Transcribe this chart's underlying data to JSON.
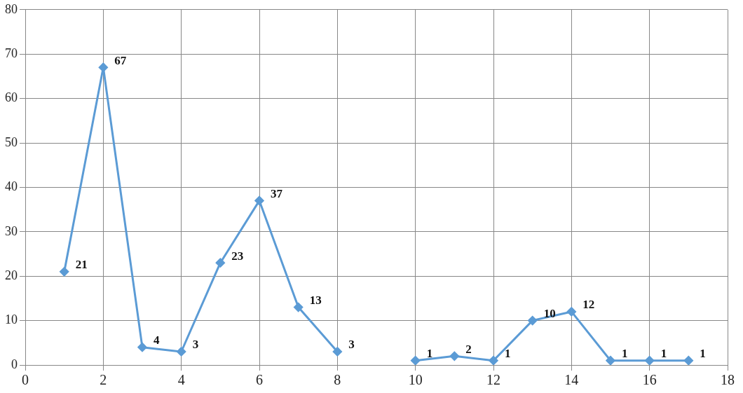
{
  "chart_data": {
    "type": "line",
    "x": [
      1,
      2,
      3,
      4,
      5,
      6,
      7,
      8,
      9,
      10,
      11,
      12,
      13,
      14,
      15,
      16,
      17
    ],
    "series": [
      {
        "color": "#5b9bd5",
        "values": [
          21,
          67,
          4,
          3,
          23,
          37,
          13,
          3,
          null,
          1,
          2,
          1,
          10,
          12,
          1,
          1,
          1
        ]
      }
    ],
    "xlim": [
      0,
      18
    ],
    "xticks": [
      0,
      2,
      4,
      6,
      8,
      10,
      12,
      14,
      16,
      18
    ],
    "ylim": [
      0,
      80
    ],
    "yticks": [
      0,
      10,
      20,
      30,
      40,
      50,
      60,
      70,
      80
    ],
    "grid": true,
    "marker": "diamond",
    "line_style": "solid",
    "data_labels": true
  }
}
